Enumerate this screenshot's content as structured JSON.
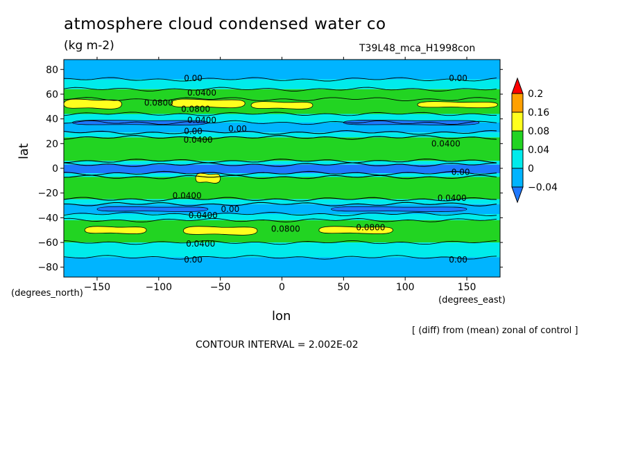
{
  "header": {
    "title": "atmosphere cloud condensed water co",
    "units": "(kg m-2)",
    "run_id": "T39L48_mca_H1998con"
  },
  "axes": {
    "xlabel": "lon",
    "ylabel": "lat",
    "x_units": "(degrees_east)",
    "y_units": "(degrees_north)"
  },
  "footer": {
    "note": "[ (diff) from (mean) zonal of control ]",
    "contour_interval": "CONTOUR INTERVAL = 2.002E-02"
  },
  "colors": {
    "blue": "#1e78ff",
    "light_blue": "#00b4ff",
    "cyan": "#00ebeb",
    "green": "#22d422",
    "yellow": "#ffff1e",
    "orange": "#ffa000",
    "red": "#ff0000"
  },
  "chart_data": {
    "type": "heatmap",
    "subtype": "filled contour",
    "xlim": [
      -177,
      177
    ],
    "ylim": [
      -88,
      88
    ],
    "x_ticks": [
      -150,
      -100,
      -50,
      0,
      50,
      100,
      150
    ],
    "y_ticks": [
      80,
      60,
      40,
      20,
      0,
      -20,
      -40,
      -60,
      -80
    ],
    "colorbar": {
      "levels": [
        "0.2",
        "0.16",
        "0.08",
        "0.04",
        "0",
        "-0.04"
      ],
      "bins": [
        {
          "range": "<-0.04",
          "color": "#1e78ff"
        },
        {
          "range": "-0.04 to 0",
          "color": "#00b4ff"
        },
        {
          "range": "0 to 0.04",
          "color": "#00ebeb"
        },
        {
          "range": "0.04 to 0.08",
          "color": "#22d422"
        },
        {
          "range": "0.08 to 0.16",
          "color": "#ffff1e"
        },
        {
          "range": "0.16 to 0.2",
          "color": "#ffa000"
        },
        {
          "range": ">0.2",
          "color": "#ff0000"
        }
      ]
    },
    "zonal_bands": [
      {
        "lat_top": 88,
        "lat_bottom": 72,
        "color": "#00b4ff"
      },
      {
        "lat_top": 72,
        "lat_bottom": 64,
        "color": "#00ebeb"
      },
      {
        "lat_top": 64,
        "lat_bottom": 56,
        "color": "#22d422"
      },
      {
        "lat_top": 56,
        "lat_bottom": 44,
        "color": "#22d422"
      },
      {
        "lat_top": 44,
        "lat_bottom": 37,
        "color": "#00ebeb"
      },
      {
        "lat_top": 37,
        "lat_bottom": 29,
        "color": "#00b4ff"
      },
      {
        "lat_top": 29,
        "lat_bottom": 25,
        "color": "#00ebeb"
      },
      {
        "lat_top": 25,
        "lat_bottom": 6,
        "color": "#22d422"
      },
      {
        "lat_top": 6,
        "lat_bottom": 3,
        "color": "#00ebeb"
      },
      {
        "lat_top": 3,
        "lat_bottom": -4,
        "color": "#1e78ff"
      },
      {
        "lat_top": -4,
        "lat_bottom": -7,
        "color": "#00ebeb"
      },
      {
        "lat_top": -7,
        "lat_bottom": -25,
        "color": "#22d422"
      },
      {
        "lat_top": -25,
        "lat_bottom": -29,
        "color": "#00ebeb"
      },
      {
        "lat_top": -29,
        "lat_bottom": -37,
        "color": "#00b4ff"
      },
      {
        "lat_top": -37,
        "lat_bottom": -42,
        "color": "#00ebeb"
      },
      {
        "lat_top": -42,
        "lat_bottom": -60,
        "color": "#22d422"
      },
      {
        "lat_top": -60,
        "lat_bottom": -72,
        "color": "#00ebeb"
      },
      {
        "lat_top": -72,
        "lat_bottom": -88,
        "color": "#00b4ff"
      }
    ],
    "patches": [
      {
        "lon_range": [
          -177,
          -130
        ],
        "lat_range": [
          56,
          48
        ],
        "color": "#ffff1e"
      },
      {
        "lon_range": [
          -90,
          -30
        ],
        "lat_range": [
          56,
          49
        ],
        "color": "#ffff1e"
      },
      {
        "lon_range": [
          -25,
          25
        ],
        "lat_range": [
          54,
          48
        ],
        "color": "#ffff1e"
      },
      {
        "lon_range": [
          110,
          175
        ],
        "lat_range": [
          54,
          49
        ],
        "color": "#ffff1e"
      },
      {
        "lon_range": [
          -160,
          -110
        ],
        "lat_range": [
          -47,
          -53
        ],
        "color": "#ffff1e"
      },
      {
        "lon_range": [
          -80,
          -20
        ],
        "lat_range": [
          -47,
          -54
        ],
        "color": "#ffff1e"
      },
      {
        "lon_range": [
          30,
          90
        ],
        "lat_range": [
          -47,
          -53
        ],
        "color": "#ffff1e"
      },
      {
        "lon_range": [
          -70,
          -50
        ],
        "lat_range": [
          -4,
          -12
        ],
        "color": "#ffff1e"
      },
      {
        "lon_range": [
          -170,
          -60
        ],
        "lat_range": [
          39,
          35
        ],
        "color": "#1e78ff"
      },
      {
        "lon_range": [
          50,
          160
        ],
        "lat_range": [
          39,
          35
        ],
        "color": "#1e78ff"
      },
      {
        "lon_range": [
          -150,
          -60
        ],
        "lat_range": [
          -31,
          -35
        ],
        "color": "#1e78ff"
      },
      {
        "lon_range": [
          40,
          150
        ],
        "lat_range": [
          -31,
          -35
        ],
        "color": "#1e78ff"
      }
    ],
    "contour_labels": [
      {
        "text": "0.00",
        "lon": -72,
        "lat": 73
      },
      {
        "text": "0.00",
        "lon": 143,
        "lat": 73
      },
      {
        "text": "0.0400",
        "lon": -65,
        "lat": 61
      },
      {
        "text": "0.0800",
        "lon": -100,
        "lat": 53
      },
      {
        "text": "0.0800",
        "lon": -70,
        "lat": 48
      },
      {
        "text": "0.0400",
        "lon": -65,
        "lat": 39
      },
      {
        "text": "0.00",
        "lon": -72,
        "lat": 30
      },
      {
        "text": "0.00",
        "lon": -36,
        "lat": 32
      },
      {
        "text": "0.0400",
        "lon": -68,
        "lat": 23
      },
      {
        "text": "0.0400",
        "lon": 133,
        "lat": 20
      },
      {
        "text": "0.0400",
        "lon": -77,
        "lat": -22
      },
      {
        "text": "0.0400",
        "lon": 138,
        "lat": -24
      },
      {
        "text": "0.00",
        "lon": -42,
        "lat": -33
      },
      {
        "text": "0.0400",
        "lon": -64,
        "lat": -38
      },
      {
        "text": "0.0800",
        "lon": 3,
        "lat": -49
      },
      {
        "text": "0.0800",
        "lon": 72,
        "lat": -48
      },
      {
        "text": "0.0400",
        "lon": -66,
        "lat": -61
      },
      {
        "text": "0.00",
        "lon": -72,
        "lat": -74
      },
      {
        "text": "0.00",
        "lon": 143,
        "lat": -74
      },
      {
        "text": "0.00",
        "lon": 145,
        "lat": -3
      }
    ]
  }
}
